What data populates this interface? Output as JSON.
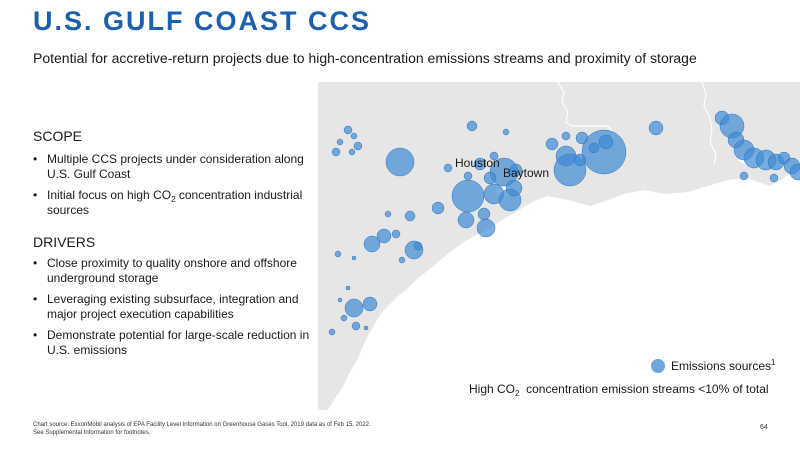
{
  "header": {
    "title": "U.S. GULF COAST CCS",
    "subtitle": "Potential for accretive-return projects due to high-concentration emissions streams and proximity of storage"
  },
  "scope": {
    "heading": "SCOPE",
    "bullets": [
      {
        "pre": "Multiple CCS projects under consideration along U.S. Gulf Coast",
        "sub": "",
        "post": ""
      },
      {
        "pre": "Initial focus on high CO",
        "sub": "2",
        "post": " concentration industrial sources"
      }
    ]
  },
  "drivers": {
    "heading": "DRIVERS",
    "bullets": [
      "Close proximity to quality onshore and offshore underground storage",
      "Leveraging existing subsurface, integration and major project execution capabilities",
      "Demonstrate potential for large-scale reduction in U.S. emissions"
    ]
  },
  "map": {
    "land_color": "#e6e6e6",
    "water_color": "#ffffff",
    "emission_color": "#3e8ad6",
    "city_labels": [
      "Houston",
      "Baytown"
    ]
  },
  "legend": {
    "label": "Emissions sources",
    "superscript": "1",
    "note_pre": "High CO",
    "note_sub": "2",
    "note_post": "  concentration emission streams <10% of total"
  },
  "footer": {
    "source": "Chart source: ExxonMobil analysis of EPA Facility Level Information on Greenhouse Gases Tool, 2019 data as of Feb 15, 2022.",
    "supplemental": "See Supplemental Information for footnotes.",
    "page_number": "64"
  }
}
